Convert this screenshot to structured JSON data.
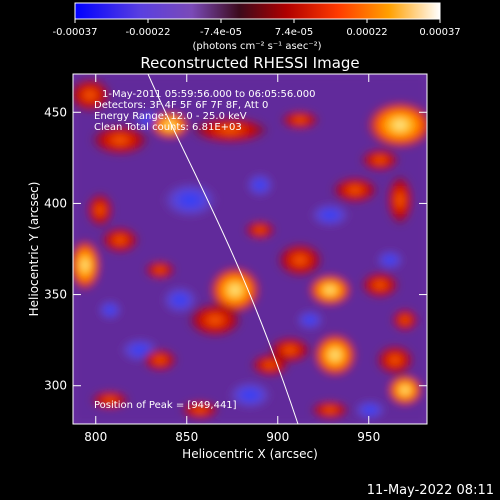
{
  "colorbar": {
    "ticks": [
      "-0.00037",
      "-0.00022",
      "-7.4e-05",
      "7.4e-05",
      "0.00022",
      "0.00037"
    ],
    "units": "(photons cm⁻² s⁻¹ asec⁻²)",
    "stops": [
      "#0000ff",
      "#7a37d6",
      "#6a2f8f",
      "#3a0d1f",
      "#a60000",
      "#ff3a00",
      "#ff9800",
      "#ffffff"
    ]
  },
  "plot": {
    "title": "Reconstructed RHESSI Image",
    "xlabel": "Heliocentric X (arcsec)",
    "ylabel": "Heliocentric Y (arcsec)",
    "xticks": [
      "800",
      "850",
      "900",
      "950"
    ],
    "yticks": [
      "450",
      "400",
      "350",
      "300"
    ],
    "info_lines": [
      "1-May-2011 05:59:56.000 to 06:05:56.000",
      "Detectors: 3F 4F 5F 6F 7F 8F, Att 0",
      "Energy Range: 12.0 - 25.0 keV",
      "Clean     Total counts: 6.81E+03"
    ],
    "peak_text": "Position of Peak = [949,441]"
  },
  "footer": {
    "timestamp": "11-May-2022 08:11"
  }
}
